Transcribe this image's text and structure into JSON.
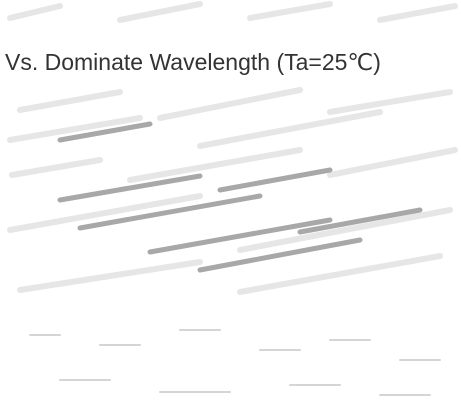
{
  "title": "Vs. Dominate Wavelength (Ta=25℃)"
}
